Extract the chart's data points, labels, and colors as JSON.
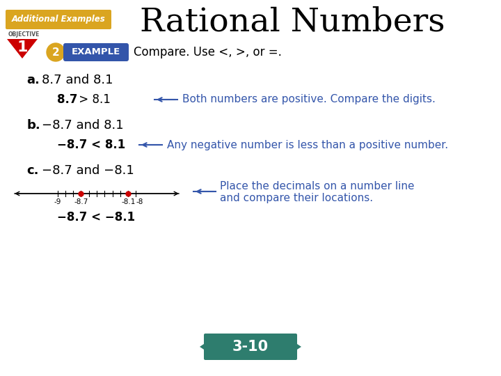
{
  "title": "Rational Numbers",
  "background_color": "#ffffff",
  "title_fontsize": 34,
  "title_color": "#000000",
  "title_font": "serif",
  "badge_text": "Additional Examples",
  "badge_bg": "#DAA520",
  "badge_text_color": "#ffffff",
  "objective_text": "OBJECTIVE",
  "objective_num": "1",
  "objective_bg": "#cc0000",
  "example_num": "2",
  "example_num_bg": "#DAA520",
  "example_label": "EXAMPLE",
  "example_label_bg": "#3355aa",
  "example_prompt": "Compare. Use <, >, or =.",
  "section_a_label": "a.",
  "section_a_text": "8.7 and 8.1",
  "section_a_result_bold": "8.7",
  "section_a_result_op": " > ",
  "section_a_result_normal": "8.1",
  "section_a_note": "Both numbers are positive. Compare the digits.",
  "section_b_label": "b.",
  "section_b_text": "−8.7 and 8.1",
  "section_b_result": "−8.7 < 8.1",
  "section_b_note": "Any negative number is less than a positive number.",
  "section_c_label": "c.",
  "section_c_text": "−8.7 and −8.1",
  "section_c_result": "−8.7 < −8.1",
  "section_c_note_line1": "Place the decimals on a number line",
  "section_c_note_line2": "and compare their locations.",
  "numberline_dots": [
    -8.7,
    -8.1
  ],
  "numberline_dot_color": "#cc0000",
  "arrow_color": "#3355aa",
  "text_color_blue": "#3355aa",
  "text_color_black": "#000000",
  "label_color": "#000000",
  "nav_bg": "#2e7d6e",
  "nav_text": "3-10",
  "nav_text_color": "#ffffff"
}
